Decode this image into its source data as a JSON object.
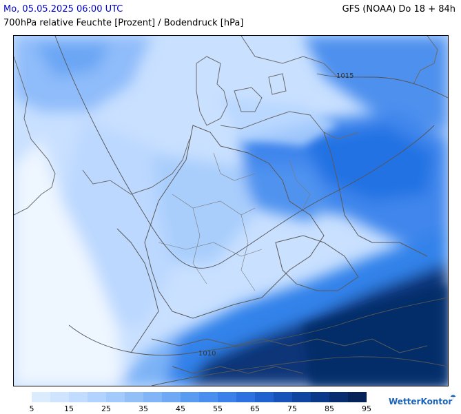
{
  "header": {
    "date": "Mo, 05.05.2025 06:00 UTC",
    "model": "GFS (NOAA) Do 18 + 84h",
    "parameter": "700hPa relative Feuchte [Prozent] / Bodendruck [hPa]"
  },
  "isobars": [
    {
      "label": "1015"
    },
    {
      "label": "1010"
    }
  ],
  "legend": {
    "colors": [
      "#dcecff",
      "#cfe4ff",
      "#c1dcff",
      "#b2d3ff",
      "#a3cafc",
      "#93bff9",
      "#82b5f7",
      "#6fa9f5",
      "#5a9bf2",
      "#4a8eef",
      "#3a80ea",
      "#2b72e0",
      "#1f62cf",
      "#1752b8",
      "#0f44a0",
      "#0a3788",
      "#072c70",
      "#052259"
    ],
    "labels": [
      "5",
      "15",
      "25",
      "35",
      "45",
      "55",
      "65",
      "75",
      "85",
      "95"
    ]
  },
  "brand": {
    "name": "WetterKontor",
    "icon": "rain-cloud-icon"
  }
}
